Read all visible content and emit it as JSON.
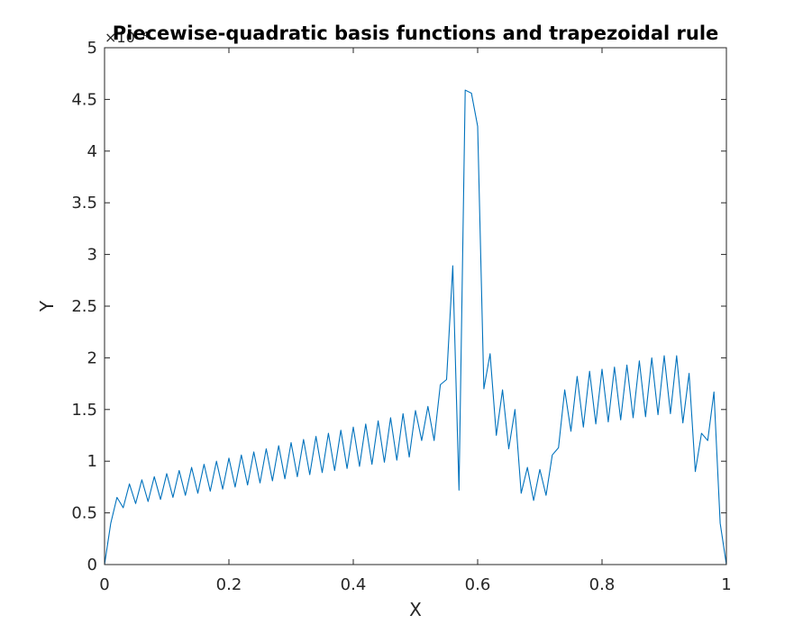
{
  "chart_data": {
    "type": "line",
    "title": "Piecewise-quadratic basis functions and trapezoidal rule",
    "xlabel": "X",
    "ylabel": "Y",
    "y_exponent_label": "×10⁻⁴",
    "xlim": [
      0,
      1
    ],
    "ylim": [
      0,
      5
    ],
    "x_ticks": [
      "0",
      "0.2",
      "0.4",
      "0.6",
      "0.8",
      "1"
    ],
    "y_ticks": [
      "0",
      "0.5",
      "1",
      "1.5",
      "2",
      "2.5",
      "3",
      "3.5",
      "4",
      "4.5",
      "5"
    ],
    "grid": false,
    "line_color": "#0072bd",
    "series": [
      {
        "x": [
          0,
          0.01,
          0.02,
          0.03,
          0.04,
          0.05,
          0.06,
          0.07,
          0.08,
          0.09,
          0.1,
          0.11,
          0.12,
          0.13,
          0.14,
          0.15,
          0.16,
          0.17,
          0.18,
          0.19,
          0.2,
          0.21,
          0.22,
          0.23,
          0.24,
          0.25,
          0.26,
          0.27,
          0.28,
          0.29,
          0.3,
          0.31,
          0.32,
          0.33,
          0.34,
          0.35,
          0.36,
          0.37,
          0.38,
          0.39,
          0.4,
          0.41,
          0.42,
          0.43,
          0.44,
          0.45,
          0.46,
          0.47,
          0.48,
          0.49,
          0.5,
          0.51,
          0.52,
          0.53,
          0.54,
          0.55,
          0.56,
          0.57,
          0.58,
          0.59,
          0.6,
          0.61,
          0.62,
          0.63,
          0.64,
          0.65,
          0.66,
          0.67,
          0.68,
          0.69,
          0.7,
          0.71,
          0.72,
          0.73,
          0.74,
          0.75,
          0.76,
          0.77,
          0.78,
          0.79,
          0.8,
          0.81,
          0.82,
          0.83,
          0.84,
          0.85,
          0.86,
          0.87,
          0.88,
          0.89,
          0.9,
          0.91,
          0.92,
          0.93,
          0.94,
          0.95,
          0.96,
          0.97,
          0.98,
          0.99,
          1.0
        ],
        "y": [
          0,
          0.4,
          0.65,
          0.55,
          0.78,
          0.59,
          0.82,
          0.61,
          0.85,
          0.63,
          0.88,
          0.65,
          0.91,
          0.67,
          0.94,
          0.69,
          0.97,
          0.71,
          1.0,
          0.73,
          1.03,
          0.75,
          1.06,
          0.77,
          1.09,
          0.79,
          1.12,
          0.81,
          1.15,
          0.83,
          1.18,
          0.85,
          1.21,
          0.87,
          1.24,
          0.89,
          1.27,
          0.91,
          1.3,
          0.93,
          1.33,
          0.95,
          1.36,
          0.97,
          1.39,
          0.99,
          1.42,
          1.01,
          1.46,
          1.04,
          1.49,
          1.2,
          1.53,
          1.2,
          1.74,
          1.79,
          2.89,
          0.72,
          4.59,
          4.56,
          4.24,
          1.7,
          2.04,
          1.25,
          1.69,
          1.12,
          1.5,
          0.69,
          0.94,
          0.62,
          0.92,
          0.67,
          1.06,
          1.13,
          1.69,
          1.29,
          1.82,
          1.33,
          1.87,
          1.36,
          1.89,
          1.38,
          1.91,
          1.4,
          1.93,
          1.42,
          1.97,
          1.43,
          2.0,
          1.45,
          2.02,
          1.46,
          2.02,
          1.37,
          1.85,
          0.9,
          1.27,
          1.2,
          1.67,
          0.4,
          0
        ]
      }
    ]
  }
}
